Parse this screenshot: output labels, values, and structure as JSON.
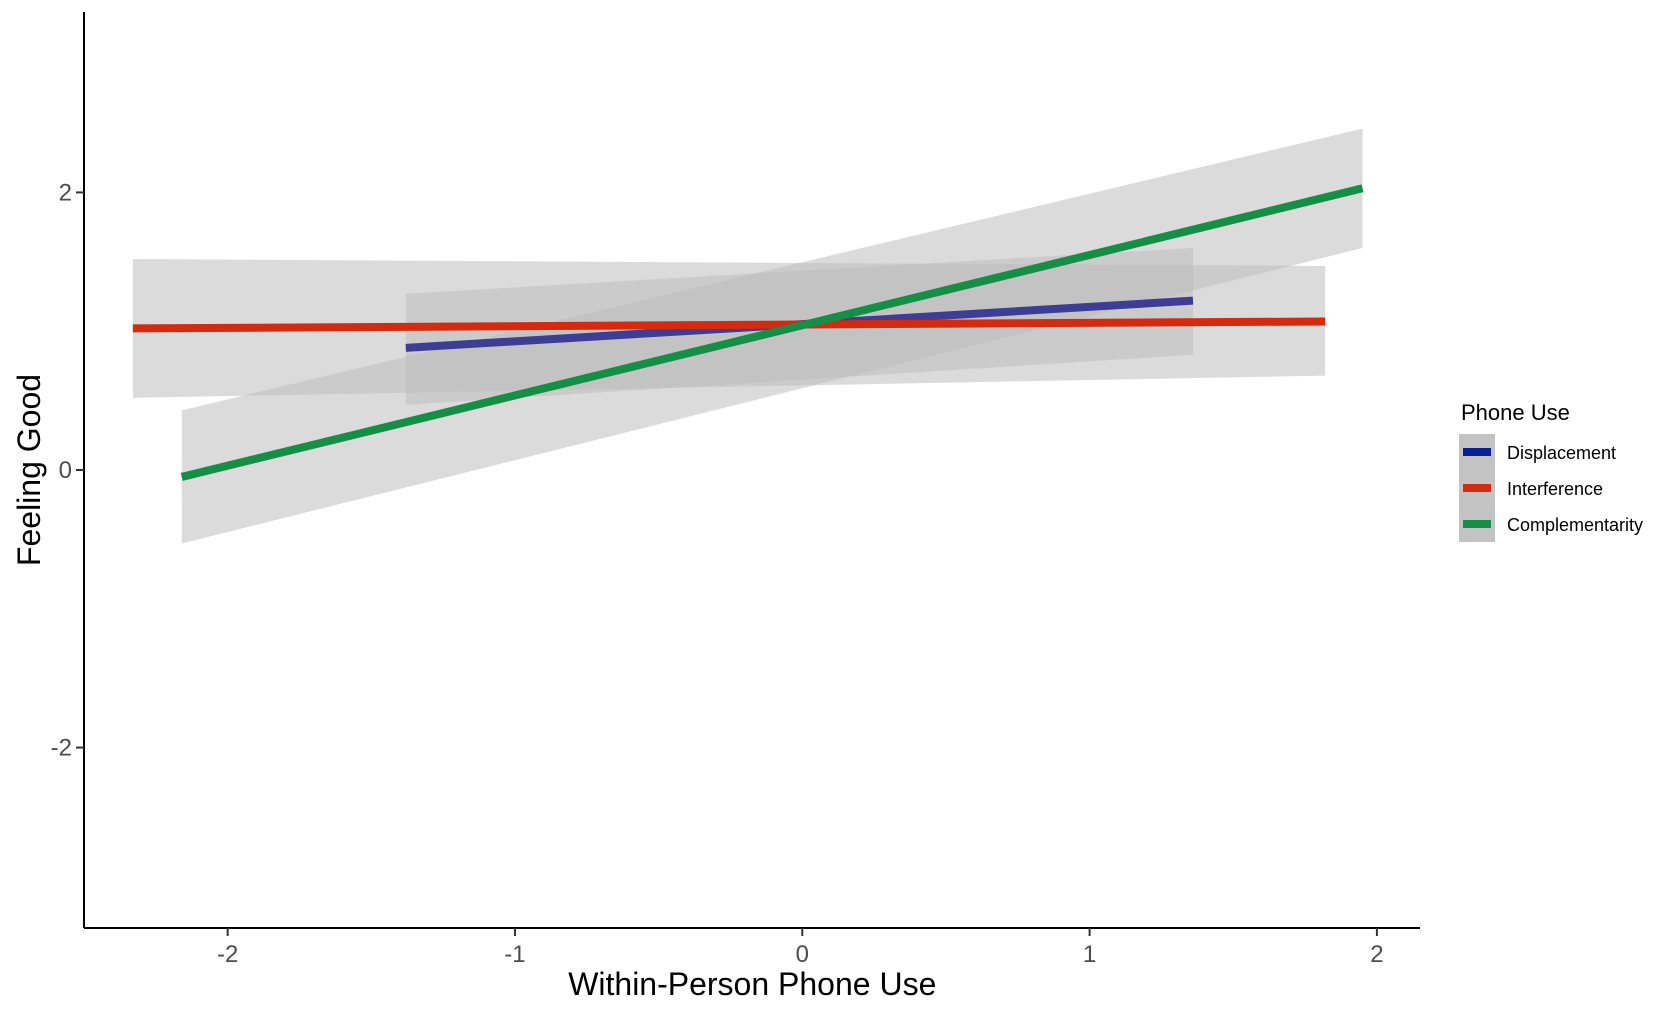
{
  "chart_data": {
    "type": "line",
    "xlabel": "Within-Person Phone Use",
    "ylabel": "Feeling Good",
    "xlim": [
      -2.5,
      2.15
    ],
    "ylim": [
      -3.3,
      3.3
    ],
    "x_ticks": [
      -2,
      -1,
      0,
      1,
      2
    ],
    "x_tick_labels": [
      "-2",
      "-1",
      "0",
      "1",
      "2"
    ],
    "y_ticks": [
      -2,
      0,
      2
    ],
    "y_tick_labels": [
      "-2",
      "0",
      "2"
    ],
    "grid": false,
    "legend": {
      "title": "Phone Use",
      "position": "right"
    },
    "band_color": "#bdbdbd",
    "series": [
      {
        "name": "Displacement",
        "color": "#3d3d96",
        "legend_color": "#0a1e96",
        "x": [
          -1.38,
          1.36
        ],
        "y": [
          0.88,
          1.22
        ],
        "ci_lower": [
          0.47,
          0.83
        ],
        "ci_upper": [
          1.27,
          1.6
        ]
      },
      {
        "name": "Interference",
        "color": "#d42a10",
        "legend_color": "#d42a10",
        "x": [
          -2.33,
          1.82
        ],
        "y": [
          1.02,
          1.07
        ],
        "ci_lower": [
          0.52,
          0.68
        ],
        "ci_upper": [
          1.52,
          1.47
        ]
      },
      {
        "name": "Complementarity",
        "color": "#168f46",
        "legend_color": "#168f46",
        "x": [
          -2.16,
          1.95
        ],
        "y": [
          -0.05,
          2.03
        ],
        "ci_lower": [
          -0.53,
          1.6
        ],
        "ci_upper": [
          0.43,
          2.46
        ]
      }
    ]
  }
}
